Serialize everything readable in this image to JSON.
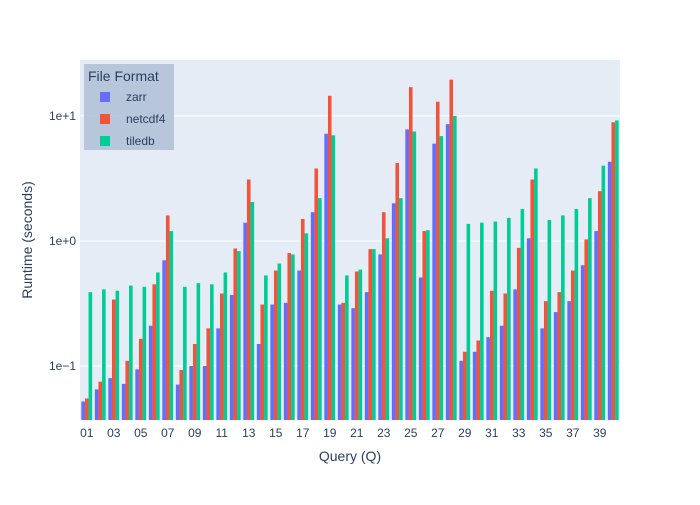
{
  "chart_data": {
    "type": "bar",
    "xlabel": "Query (Q)",
    "ylabel": "Runtime (seconds)",
    "y_scale": "log",
    "ylim": [
      0.037,
      28
    ],
    "y_ticks": [
      {
        "value": 0.1,
        "label": "1e−1"
      },
      {
        "value": 1,
        "label": "1e+0"
      },
      {
        "value": 10,
        "label": "1e+1"
      }
    ],
    "grid": true,
    "legend": {
      "title": "File Format",
      "position": "top-left"
    },
    "categories": [
      "01",
      "02",
      "03",
      "04",
      "05",
      "06",
      "07",
      "08",
      "09",
      "10",
      "11",
      "12",
      "13",
      "14",
      "15",
      "16",
      "17",
      "18",
      "19",
      "20",
      "21",
      "22",
      "23",
      "24",
      "25",
      "26",
      "27",
      "28",
      "29",
      "30",
      "31",
      "32",
      "33",
      "34",
      "35",
      "36",
      "37",
      "38",
      "39",
      "40"
    ],
    "x_tick_labels": [
      "01",
      "03",
      "05",
      "07",
      "09",
      "11",
      "13",
      "15",
      "17",
      "19",
      "21",
      "23",
      "25",
      "27",
      "29",
      "31",
      "33",
      "35",
      "37",
      "39"
    ],
    "series": [
      {
        "name": "zarr",
        "color": "#636efa",
        "values": [
          0.052,
          0.065,
          0.08,
          0.072,
          0.094,
          0.21,
          0.7,
          0.071,
          0.1,
          0.1,
          0.2,
          0.37,
          1.4,
          0.15,
          0.31,
          0.32,
          0.58,
          1.7,
          7.2,
          0.31,
          0.29,
          0.39,
          0.78,
          2.0,
          7.8,
          0.51,
          6.0,
          8.6,
          0.11,
          0.13,
          0.17,
          0.21,
          0.41,
          1.05,
          0.2,
          0.27,
          0.33,
          0.64,
          1.2,
          4.3
        ]
      },
      {
        "name": "netcdf4",
        "color": "#ef553b",
        "values": [
          0.055,
          0.075,
          0.34,
          0.11,
          0.165,
          0.45,
          1.6,
          0.093,
          0.15,
          0.2,
          0.38,
          0.87,
          3.1,
          0.31,
          0.58,
          0.8,
          1.5,
          3.8,
          14.5,
          0.32,
          0.57,
          0.86,
          1.7,
          4.2,
          17.0,
          1.2,
          13.0,
          19.5,
          0.13,
          0.16,
          0.4,
          0.38,
          0.88,
          3.1,
          0.33,
          0.39,
          0.58,
          1.03,
          2.5,
          8.9
        ]
      },
      {
        "name": "tiledb",
        "color": "#00cc96",
        "values": [
          0.39,
          0.41,
          0.4,
          0.44,
          0.43,
          0.56,
          1.2,
          0.43,
          0.46,
          0.45,
          0.56,
          0.83,
          2.05,
          0.53,
          0.66,
          0.78,
          1.15,
          2.2,
          7.0,
          0.53,
          0.59,
          0.86,
          1.05,
          2.2,
          7.5,
          1.22,
          6.9,
          10.0,
          1.37,
          1.4,
          1.43,
          1.53,
          1.8,
          3.8,
          1.47,
          1.6,
          1.8,
          2.2,
          4.0,
          9.2
        ]
      }
    ]
  }
}
